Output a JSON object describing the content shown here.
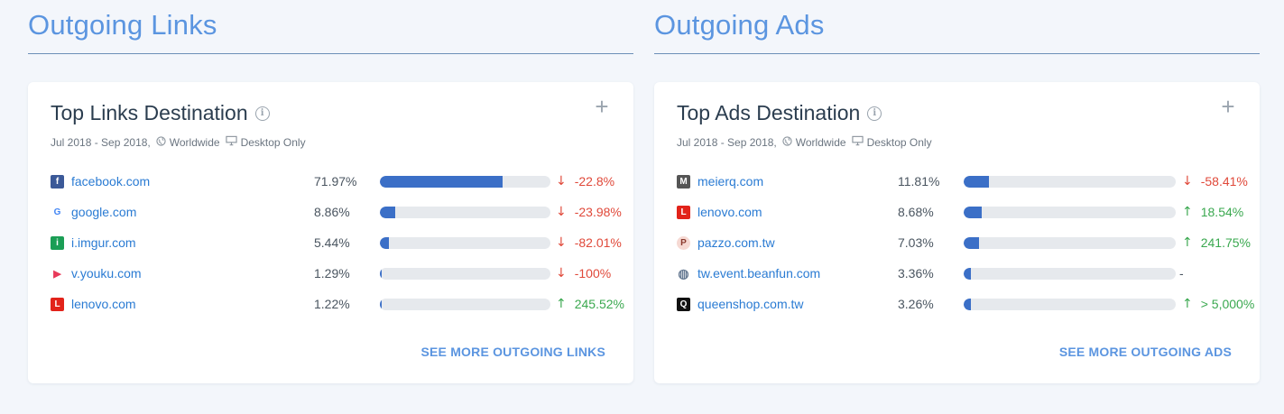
{
  "left_section": {
    "title": "Outgoing Links",
    "card": {
      "title": "Top Links Destination",
      "date_range": "Jul 2018 - Sep 2018,",
      "region": "Worldwide",
      "device": "Desktop Only",
      "see_more": "SEE MORE OUTGOING LINKS",
      "rows": [
        {
          "domain": "facebook.com",
          "share": "71.97%",
          "fill": 0.7197,
          "change": "-22.8%",
          "direction": "down",
          "icon": "facebook-icon",
          "icon_bg": "#3b5998",
          "icon_text": "f"
        },
        {
          "domain": "google.com",
          "share": "8.86%",
          "fill": 0.0886,
          "change": "-23.98%",
          "direction": "down",
          "icon": "google-icon",
          "icon_bg": "#ffffff",
          "icon_text": "G"
        },
        {
          "domain": "i.imgur.com",
          "share": "5.44%",
          "fill": 0.0544,
          "change": "-82.01%",
          "direction": "down",
          "icon": "imgur-icon",
          "icon_bg": "#1b9e55",
          "icon_text": "i"
        },
        {
          "domain": "v.youku.com",
          "share": "1.29%",
          "fill": 0.0129,
          "change": "-100%",
          "direction": "down",
          "icon": "youku-icon",
          "icon_bg": "#ffffff",
          "icon_text": "▶"
        },
        {
          "domain": "lenovo.com",
          "share": "1.22%",
          "fill": 0.0122,
          "change": "245.52%",
          "direction": "up",
          "icon": "lenovo-icon",
          "icon_bg": "#e2231a",
          "icon_text": "L"
        }
      ]
    }
  },
  "right_section": {
    "title": "Outgoing Ads",
    "card": {
      "title": "Top Ads Destination",
      "date_range": "Jul 2018 - Sep 2018,",
      "region": "Worldwide",
      "device": "Desktop Only",
      "see_more": "SEE MORE OUTGOING ADS",
      "rows": [
        {
          "domain": "meierq.com",
          "share": "11.81%",
          "fill": 0.1181,
          "change": "-58.41%",
          "direction": "down",
          "icon": "meierq-icon",
          "icon_bg": "#555555",
          "icon_text": "M"
        },
        {
          "domain": "lenovo.com",
          "share": "8.68%",
          "fill": 0.0868,
          "change": "18.54%",
          "direction": "up",
          "icon": "lenovo-icon",
          "icon_bg": "#e2231a",
          "icon_text": "L"
        },
        {
          "domain": "pazzo.com.tw",
          "share": "7.03%",
          "fill": 0.0703,
          "change": "241.75%",
          "direction": "up",
          "icon": "pazzo-icon",
          "icon_bg": "#f6d9d3",
          "icon_text": "P"
        },
        {
          "domain": "tw.event.beanfun.com",
          "share": "3.36%",
          "fill": 0.0336,
          "change": "-",
          "direction": "none",
          "icon": "globe-icon",
          "icon_bg": "#ffffff",
          "icon_text": "◍"
        },
        {
          "domain": "queenshop.com.tw",
          "share": "3.26%",
          "fill": 0.0326,
          "change": "> 5,000%",
          "direction": "up",
          "icon": "queenshop-icon",
          "icon_bg": "#111111",
          "icon_text": "Q"
        }
      ]
    }
  },
  "colors": {
    "accent": "#5b95e0",
    "bar": "#3b6fc7",
    "down": "#e0493a",
    "up": "#3aa84f",
    "neutral": "#4a5560"
  }
}
